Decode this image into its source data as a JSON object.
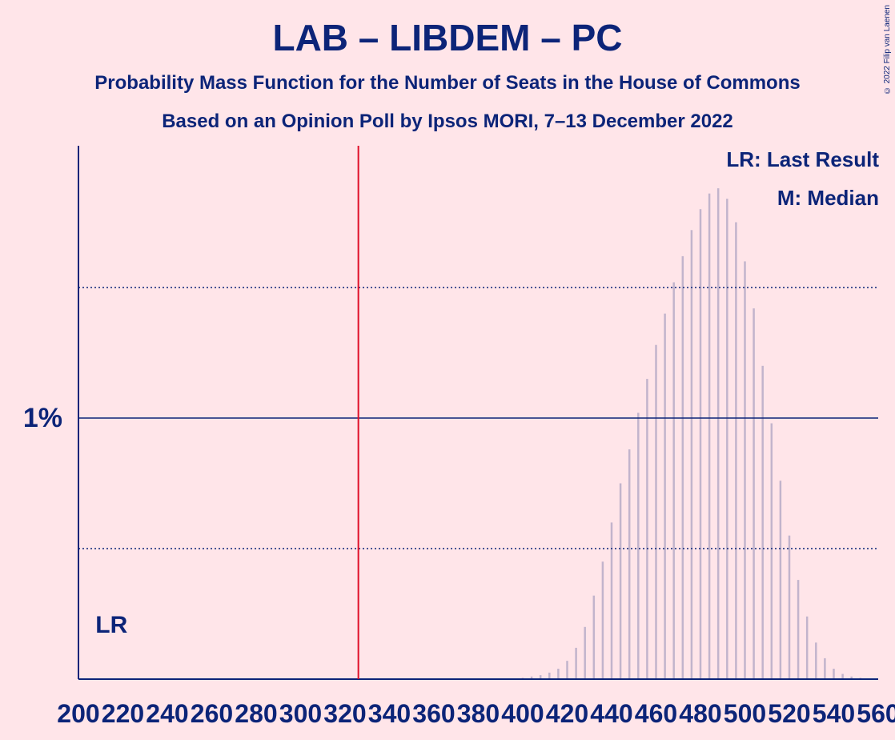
{
  "title": "LAB – LIBDEM – PC",
  "subtitle_1": "Probability Mass Function for the Number of Seats in the House of Commons",
  "subtitle_2": "Based on an Opinion Poll by Ipsos MORI, 7–13 December 2022",
  "copyright": "© 2022 Filip van Laenen",
  "legend": {
    "last_result": "LR: Last Result",
    "median": "M: Median"
  },
  "colors": {
    "background": "#ffe5e9",
    "text": "#0c2478",
    "majority_line": "#e0102a"
  },
  "chart_data": {
    "type": "bar",
    "x_range": [
      200,
      560
    ],
    "x_ticks": [
      200,
      220,
      240,
      260,
      280,
      300,
      320,
      340,
      360,
      380,
      400,
      420,
      440,
      460,
      480,
      500,
      520,
      540,
      560
    ],
    "y_tick_labels": [
      "1%"
    ],
    "y_gridlines_percent": [
      0.5,
      1.0,
      1.5
    ],
    "ylim_percent": [
      0,
      2.05
    ],
    "majority_line": 326,
    "last_result_label": "LR",
    "last_result_seat": 212,
    "points": [
      [
        396,
        0.003
      ],
      [
        400,
        0.005
      ],
      [
        404,
        0.01
      ],
      [
        408,
        0.015
      ],
      [
        412,
        0.025
      ],
      [
        416,
        0.04
      ],
      [
        420,
        0.07
      ],
      [
        424,
        0.12
      ],
      [
        428,
        0.2
      ],
      [
        432,
        0.32
      ],
      [
        436,
        0.45
      ],
      [
        440,
        0.6
      ],
      [
        444,
        0.75
      ],
      [
        448,
        0.88
      ],
      [
        452,
        1.02
      ],
      [
        456,
        1.15
      ],
      [
        460,
        1.28
      ],
      [
        464,
        1.4
      ],
      [
        468,
        1.52
      ],
      [
        472,
        1.62
      ],
      [
        476,
        1.72
      ],
      [
        480,
        1.8
      ],
      [
        484,
        1.86
      ],
      [
        488,
        1.88
      ],
      [
        492,
        1.84
      ],
      [
        496,
        1.75
      ],
      [
        500,
        1.6
      ],
      [
        504,
        1.42
      ],
      [
        508,
        1.2
      ],
      [
        512,
        0.98
      ],
      [
        516,
        0.76
      ],
      [
        520,
        0.55
      ],
      [
        524,
        0.38
      ],
      [
        528,
        0.24
      ],
      [
        532,
        0.14
      ],
      [
        536,
        0.08
      ],
      [
        540,
        0.04
      ],
      [
        544,
        0.02
      ],
      [
        548,
        0.01
      ],
      [
        552,
        0.005
      ],
      [
        556,
        0.002
      ]
    ]
  }
}
